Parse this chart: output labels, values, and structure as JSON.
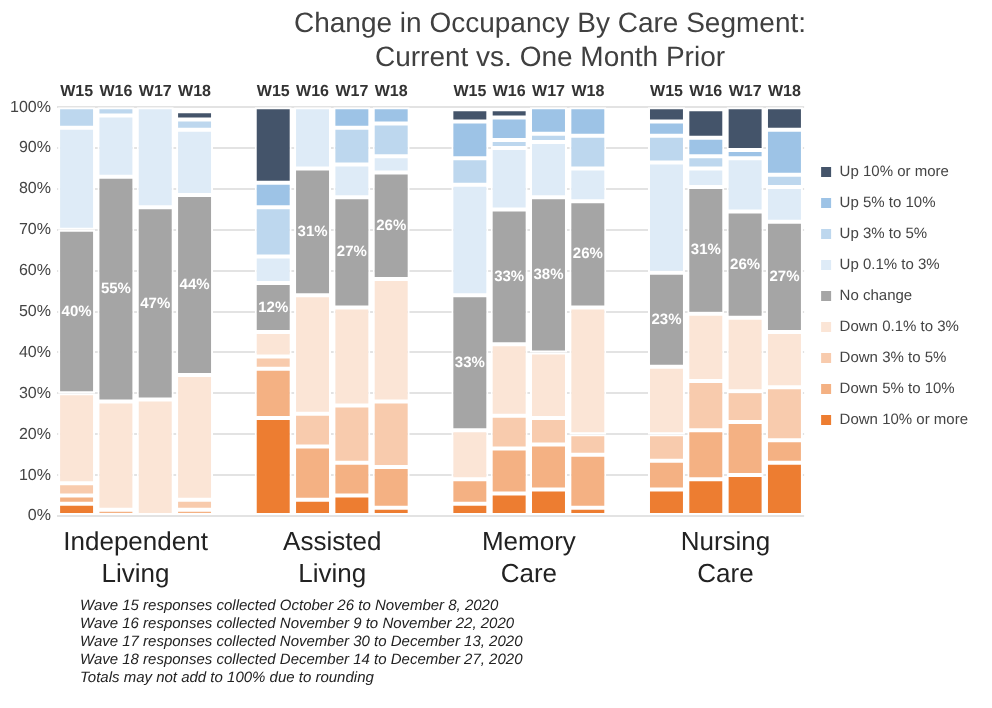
{
  "chart_data": {
    "type": "bar",
    "stacked": true,
    "title": "Change in Occupancy By Care Segment: Current vs. One Month Prior",
    "categories": [
      "W15",
      "W16",
      "W17",
      "W18",
      null,
      "W15",
      "W16",
      "W17",
      "W18",
      null,
      "W15",
      "W16",
      "W17",
      "W18",
      null,
      "W15",
      "W16",
      "W17",
      "W18"
    ],
    "series": [
      {
        "name": "Down 10% or more",
        "color": "#ed7d31",
        "values": [
          3,
          0,
          0,
          0,
          null,
          24,
          4,
          5,
          2,
          null,
          3,
          5.5,
          6.5,
          2,
          null,
          6.5,
          9,
          10,
          13
        ]
      },
      {
        "name": "Down 5% to 10%",
        "color": "#f4b183",
        "values": [
          2,
          1.5,
          0,
          1.5,
          null,
          12,
          13,
          8,
          10,
          null,
          6,
          11,
          11,
          13,
          null,
          7,
          12,
          13,
          5.5
        ]
      },
      {
        "name": "Down 3% to 5%",
        "color": "#f8cbad",
        "values": [
          3,
          0,
          0,
          2.5,
          null,
          3,
          8,
          14,
          16,
          null,
          0,
          8,
          6.5,
          5,
          null,
          6.5,
          12,
          7.5,
          13
        ]
      },
      {
        "name": "Down 0.1% to 3%",
        "color": "#fbe5d6",
        "values": [
          22,
          26.5,
          28.5,
          30.5,
          null,
          6,
          29,
          24,
          30,
          null,
          12,
          17.5,
          16,
          31,
          null,
          16.5,
          16.5,
          18,
          13.5
        ]
      },
      {
        "name": "No change",
        "color": "#a5a5a5",
        "values": [
          40,
          55,
          47,
          44,
          null,
          12,
          31,
          27,
          26,
          null,
          33,
          33,
          38,
          26,
          null,
          23,
          31,
          26,
          27
        ],
        "value_labels": [
          "40%",
          "55%",
          "47%",
          "44%",
          null,
          "12%",
          "31%",
          "27%",
          "26%",
          null,
          "33%",
          "33%",
          "38%",
          "26%",
          null,
          "23%",
          "31%",
          "26%",
          "27%"
        ]
      },
      {
        "name": "Up 0.1% to 3%",
        "color": "#deebf7",
        "values": [
          25,
          15,
          24.5,
          16,
          null,
          6.5,
          15,
          8,
          4,
          null,
          27,
          15,
          13.5,
          8,
          null,
          27,
          4.5,
          13,
          8.5
        ]
      },
      {
        "name": "Up 3% to 5%",
        "color": "#bdd7ee",
        "values": [
          5,
          2,
          0,
          2.5,
          null,
          12,
          0,
          9,
          8,
          null,
          6.5,
          2,
          2,
          8,
          null,
          6.5,
          3,
          0,
          3
        ]
      },
      {
        "name": "Up 5% to 10%",
        "color": "#9dc3e6",
        "values": [
          0,
          0,
          0,
          0,
          null,
          6,
          0,
          5,
          4,
          null,
          9,
          5.5,
          6.5,
          7,
          null,
          3.5,
          4.5,
          2,
          11
        ]
      },
      {
        "name": "Up 10% or more",
        "color": "#44546a",
        "values": [
          0,
          0,
          0,
          2,
          null,
          18.5,
          0,
          0,
          0,
          null,
          3,
          2,
          0,
          0,
          null,
          3.5,
          7,
          10.5,
          5.5
        ]
      }
    ],
    "ylim": [
      0,
      100
    ],
    "yticks": [
      {
        "value": 0,
        "label": "0%"
      },
      {
        "value": 10,
        "label": "10%"
      },
      {
        "value": 20,
        "label": "20%"
      },
      {
        "value": 30,
        "label": "30%"
      },
      {
        "value": 40,
        "label": "40%"
      },
      {
        "value": 50,
        "label": "50%"
      },
      {
        "value": 60,
        "label": "60%"
      },
      {
        "value": 70,
        "label": "70%"
      },
      {
        "value": 80,
        "label": "80%"
      },
      {
        "value": 90,
        "label": "90%"
      },
      {
        "value": 100,
        "label": "100%"
      }
    ],
    "grid": "y",
    "legend": "right",
    "annotations": [
      "Independent Living",
      "Assisted Living",
      "Memory Care",
      "Nursing Care",
      "Wave 15 responses collected October 26 to November 8, 2020",
      "Wave 16 responses collected November 9 to November 22, 2020",
      "Wave 17 responses collected November 30 to December 13, 2020",
      "Wave 18 responses collected December 14 to December 27, 2020",
      "Totals may not add to 100% due to rounding"
    ]
  }
}
